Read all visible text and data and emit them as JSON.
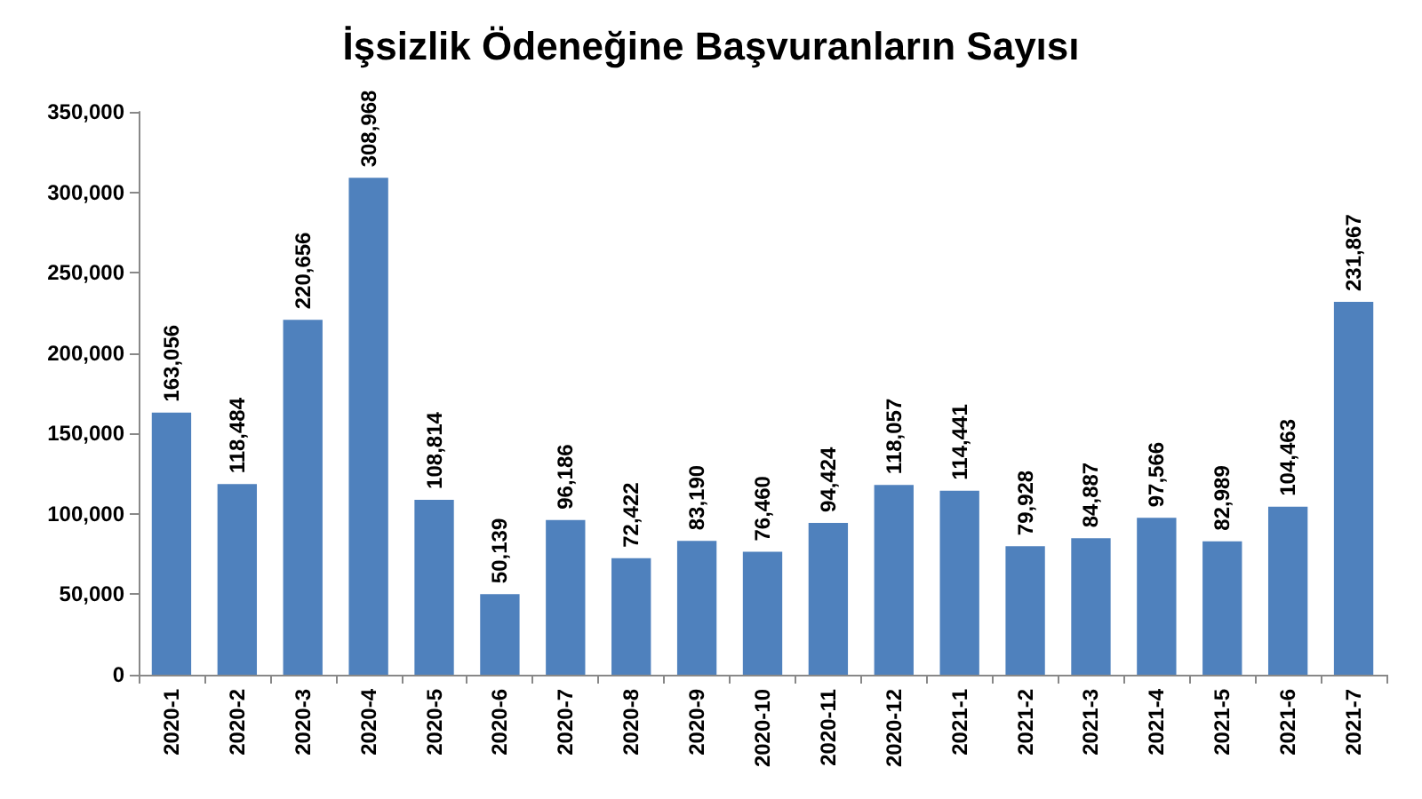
{
  "chart_data": {
    "type": "bar",
    "title": "İşsizlik Ödeneğine Başvuranların Sayısı",
    "categories": [
      "2020-1",
      "2020-2",
      "2020-3",
      "2020-4",
      "2020-5",
      "2020-6",
      "2020-7",
      "2020-8",
      "2020-9",
      "2020-10",
      "2020-11",
      "2020-12",
      "2021-1",
      "2021-2",
      "2021-3",
      "2021-4",
      "2021-5",
      "2021-6",
      "2021-7"
    ],
    "values": [
      163056,
      118484,
      220656,
      308968,
      108814,
      50139,
      96186,
      72422,
      83190,
      76460,
      94424,
      118057,
      114441,
      79928,
      84887,
      97566,
      82989,
      104463,
      231867
    ],
    "color": "#4f81bd",
    "value_labels": [
      "163,056",
      "118,484",
      "220,656",
      "308,968",
      "108,814",
      "50,139",
      "96,186",
      "72,422",
      "83,190",
      "76,460",
      "94,424",
      "118,057",
      "114,441",
      "79,928",
      "84,887",
      "97,566",
      "82,989",
      "104,463",
      "231,867"
    ],
    "ylim": [
      0,
      350000
    ],
    "yticks": [
      0,
      {
        "value": 50000,
        "label": "50,000"
      },
      {
        "value": 100000,
        "label": "100,000"
      },
      {
        "value": 150000,
        "label": "150,000"
      },
      {
        "value": 200000,
        "label": "200,000"
      },
      {
        "value": 250000,
        "label": "250,000"
      },
      {
        "value": 300000,
        "label": "300,000"
      },
      {
        "value": 350000,
        "label": "350,000"
      }
    ],
    "grid": false
  }
}
